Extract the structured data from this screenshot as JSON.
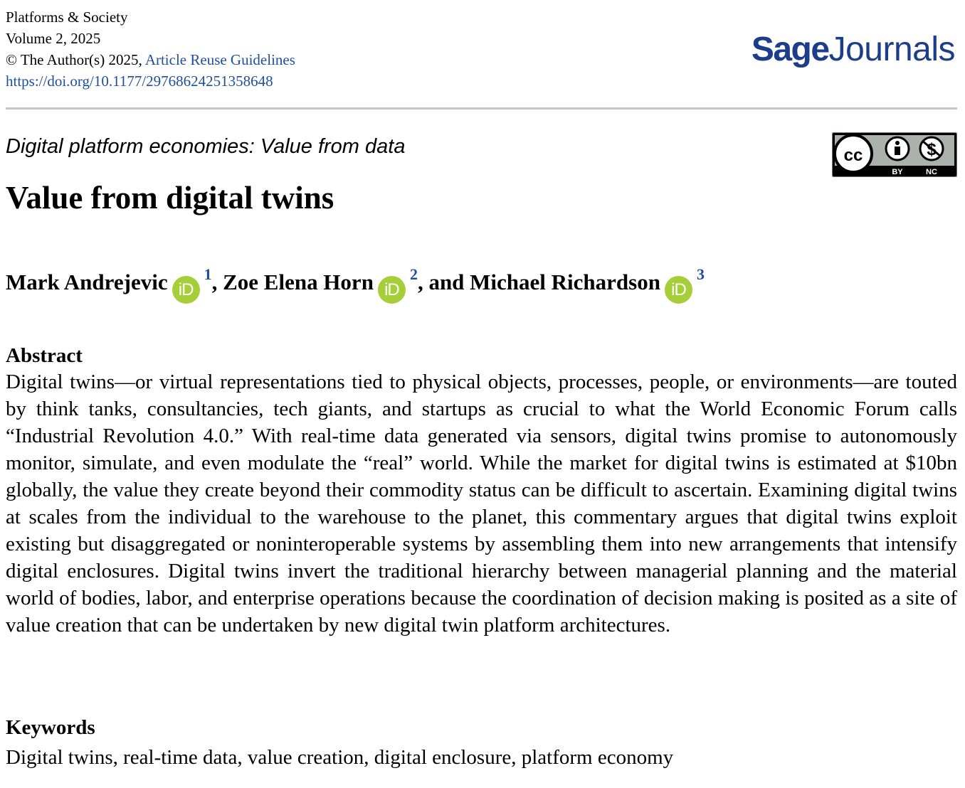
{
  "journal": {
    "name": "Platforms & Society",
    "volume": "Volume 2, 2025",
    "copyright": "© The Author(s) 2025, ",
    "reuse_link": "Article Reuse Guidelines",
    "doi": "https://doi.org/10.1177/29768624251358648"
  },
  "brand": {
    "part1": "Sage",
    "part2": "Journals"
  },
  "license_badge": {
    "cc": "cc",
    "by": "BY",
    "nc": "NC"
  },
  "section_title": "Digital platform economies: Value from data",
  "article_title": "Value from digital twins",
  "authors": [
    {
      "name": "Mark Andrejevic",
      "orcid": "iD",
      "affiliation": "1",
      "separator": ", "
    },
    {
      "name": "Zoe Elena Horn",
      "orcid": "iD",
      "affiliation": "2",
      "separator": ", and "
    },
    {
      "name": "Michael Richardson",
      "orcid": "iD",
      "affiliation": "3",
      "separator": ""
    }
  ],
  "abstract": {
    "heading": "Abstract",
    "text": "Digital twins—or virtual representations tied to physical objects, processes, people, or environments—are touted by think tanks, consultancies, tech giants, and startups as crucial to what the World Economic Forum calls “Industrial Revolution 4.0.” With real-time data generated via sensors, digital twins promise to autonomously monitor, simulate, and even modulate the “real” world. While the market for digital twins is estimated at $10bn globally, the value they create beyond their commodity status can be difficult to ascertain. Examining digital twins at scales from the individual to the warehouse to the planet, this commentary argues that digital twins exploit existing but disaggregated or noninteroperable systems by assembling them into new arrangements that intensify digital enclosures. Digital twins invert the traditional hierarchy between managerial planning and the material world of bodies, labor, and enterprise operations because the coordination of decision making is posited as a site of value creation that can be undertaken by new digital twin platform architectures."
  },
  "keywords": {
    "heading": "Keywords",
    "text": "Digital twins, real-time data, value creation, digital enclosure, platform economy"
  }
}
